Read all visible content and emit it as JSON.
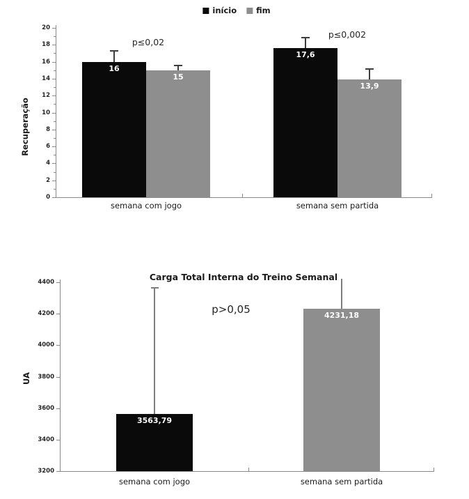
{
  "figure": {
    "background": "#ffffff",
    "text_color": "#1a1a1a",
    "axis_color": "#8a8a8a"
  },
  "chart_data": [
    {
      "type": "bar",
      "title": "",
      "ylabel": "Recuperação",
      "xlabel": "",
      "categories": [
        "semana com jogo",
        "semana sem partida"
      ],
      "series": [
        {
          "name": "início",
          "color": "#0a0a0a",
          "values": [
            16,
            17.6
          ],
          "value_labels": [
            "16",
            "17,6"
          ],
          "error_tops": [
            17.4,
            18.9
          ]
        },
        {
          "name": "fim",
          "color": "#8e8e8e",
          "values": [
            15,
            13.9
          ],
          "value_labels": [
            "15",
            "13,9"
          ],
          "error_tops": [
            15.6,
            15.2
          ]
        }
      ],
      "ylim": [
        0,
        20
      ],
      "ytick_step": 2,
      "yminor_step": 1,
      "grid": false,
      "legend_position": "top-center",
      "annotations": [
        {
          "text": "p≤0,02",
          "over_category": "semana com jogo"
        },
        {
          "text": "p≤0,002",
          "over_category": "semana sem partida"
        }
      ]
    },
    {
      "type": "bar",
      "title": "Carga Total Interna do Treino Semanal",
      "ylabel": "UA",
      "xlabel": "",
      "categories": [
        "semana com jogo",
        "semana sem partida"
      ],
      "series": [
        {
          "name": "",
          "colors": [
            "#0a0a0a",
            "#8e8e8e"
          ],
          "values": [
            3563.79,
            4231.18
          ],
          "value_labels": [
            "3563,79",
            "4231,18"
          ],
          "error_tops": [
            4368,
            4422
          ],
          "error_caps": [
            true,
            false
          ]
        }
      ],
      "ylim": [
        3200,
        4400
      ],
      "ytick_step": 200,
      "grid": false,
      "legend_position": "none",
      "annotations": [
        {
          "text": "p>0,05"
        }
      ]
    }
  ]
}
